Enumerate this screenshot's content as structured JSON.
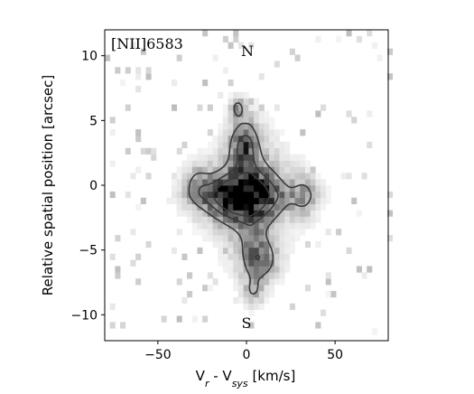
{
  "chart_data": {
    "type": "heatmap",
    "title": "",
    "annotations": {
      "line_label": "[NII]6583",
      "north": "N",
      "south": "S"
    },
    "xlabel": {
      "main": "V",
      "sub_r": "r",
      "mid": " - V",
      "sub_sys": "sys",
      "unit": " [km/s]"
    },
    "ylabel": "Relative spatial position [arcsec]",
    "xlim": [
      -80,
      80
    ],
    "ylim": [
      -12,
      12
    ],
    "xticks": [
      -50,
      0,
      50
    ],
    "xtick_labels": [
      "−50",
      "0",
      "50"
    ],
    "yticks": [
      -10,
      -5,
      0,
      5,
      10
    ],
    "ytick_labels": [
      "−10",
      "−5",
      "0",
      "5",
      "10"
    ],
    "grid": false,
    "colormap": "grayscale (white = low, black = high)",
    "emission_peak": {
      "x": -5,
      "y": -0.8
    },
    "contour_levels": 3
  }
}
